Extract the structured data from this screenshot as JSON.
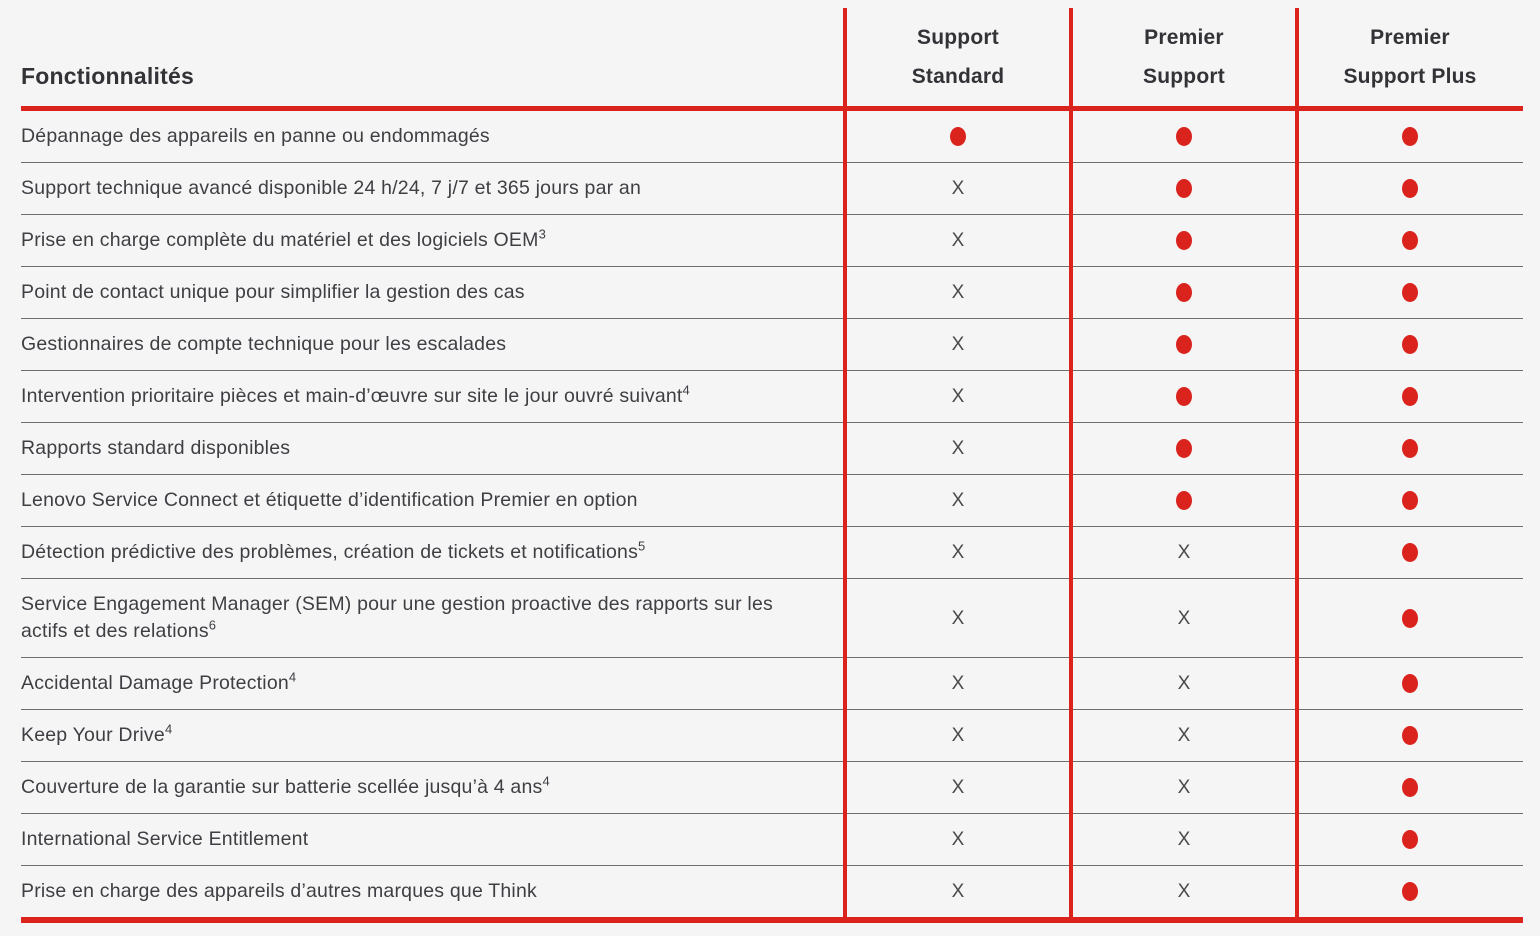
{
  "table": {
    "feature_header": "Fonctionnalités",
    "columns": [
      {
        "id": "support-standard",
        "title": "Support\nStandard"
      },
      {
        "id": "premier-support",
        "title": "Premier\nSupport"
      },
      {
        "id": "premier-support-plus",
        "title": "Premier\nSupport Plus"
      }
    ],
    "marks": {
      "included_icon": "red-dot-icon",
      "excluded": "X"
    },
    "colors": {
      "accent_red": "#DB231D",
      "background": "#F6F5F5",
      "row_separator": "#6F6F6F",
      "text": "#3F3E43"
    },
    "rows": [
      {
        "feature": "Dépannage des appareils en panne ou endommagés",
        "values": [
          "yes",
          "yes",
          "yes"
        ]
      },
      {
        "feature": "Support technique avancé disponible 24 h/24, 7 j/7 et 365 jours par an",
        "values": [
          "no",
          "yes",
          "yes"
        ]
      },
      {
        "feature": "Prise en charge complète du matériel et des logiciels OEM",
        "sup": "3",
        "values": [
          "no",
          "yes",
          "yes"
        ]
      },
      {
        "feature": "Point de contact unique pour simplifier la gestion des cas",
        "values": [
          "no",
          "yes",
          "yes"
        ]
      },
      {
        "feature": "Gestionnaires de compte technique pour les escalades",
        "values": [
          "no",
          "yes",
          "yes"
        ]
      },
      {
        "feature": "Intervention prioritaire pièces et main-d’œuvre sur site le jour ouvré suivant",
        "sup": "4",
        "values": [
          "no",
          "yes",
          "yes"
        ]
      },
      {
        "feature": "Rapports standard disponibles",
        "values": [
          "no",
          "yes",
          "yes"
        ]
      },
      {
        "feature": "Lenovo Service Connect et étiquette d’identification Premier en option",
        "values": [
          "no",
          "yes",
          "yes"
        ]
      },
      {
        "feature": "Détection prédictive des problèmes, création de tickets et notifications",
        "sup": "5",
        "values": [
          "no",
          "no",
          "yes"
        ]
      },
      {
        "feature": "Service Engagement Manager (SEM) pour une gestion proactive des rapports sur les actifs et des relations",
        "sup": "6",
        "values": [
          "no",
          "no",
          "yes"
        ]
      },
      {
        "feature": "Accidental Damage Protection",
        "sup": "4",
        "values": [
          "no",
          "no",
          "yes"
        ]
      },
      {
        "feature": "Keep Your Drive",
        "sup": "4",
        "values": [
          "no",
          "no",
          "yes"
        ]
      },
      {
        "feature": "Couverture de la garantie sur batterie scellée jusqu’à 4 ans",
        "sup": "4",
        "values": [
          "no",
          "no",
          "yes"
        ]
      },
      {
        "feature": "International Service Entitlement",
        "values": [
          "no",
          "no",
          "yes"
        ]
      },
      {
        "feature": "Prise en charge des appareils d’autres marques que Think",
        "values": [
          "no",
          "no",
          "yes"
        ]
      }
    ]
  }
}
